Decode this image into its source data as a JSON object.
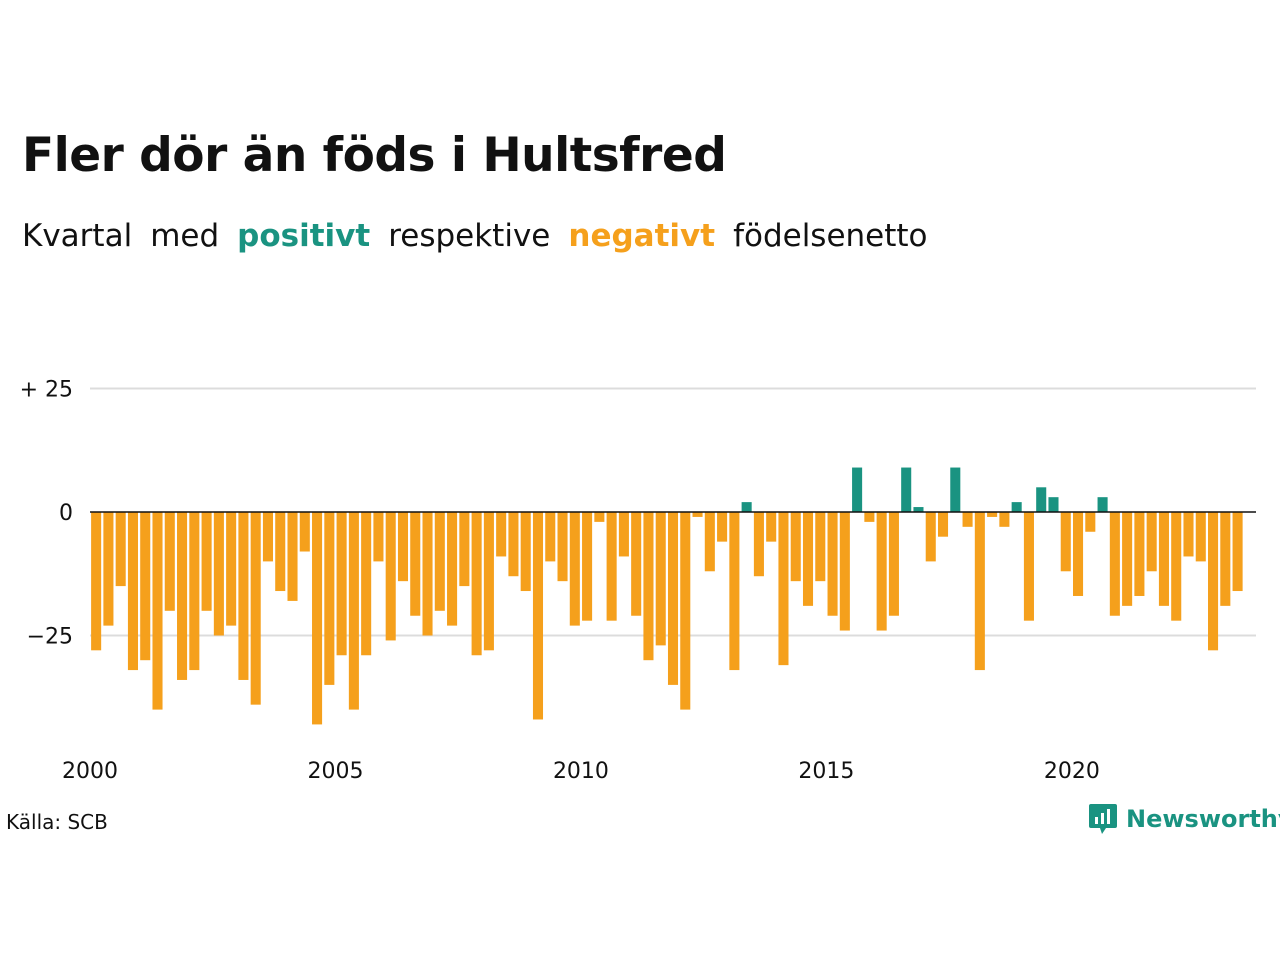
{
  "title": "Fler dör än föds i Hultsfred",
  "subtitle": {
    "part1": "Kvartal",
    "part2": "med",
    "positive_word": "positivt",
    "part3": "respektive",
    "negative_word": "negativt",
    "part4": "födelsenetto"
  },
  "colors": {
    "positive": "#1a9381",
    "negative": "#f5a01c",
    "grid": "#dcdcdc",
    "text": "#111111"
  },
  "source": "Källa: SCB",
  "brand": {
    "name": "Newsworthy",
    "icon": "newsworthy-logo-icon"
  },
  "chart_data": {
    "type": "bar",
    "x_start": 2000,
    "x_step": 0.25,
    "xlim": [
      2000,
      2023.75
    ],
    "ylim": [
      -43,
      25
    ],
    "yticks": [
      25,
      0,
      -25
    ],
    "ytick_labels": [
      "+ 25",
      "0",
      "−25"
    ],
    "xticks": [
      2000,
      2005,
      2010,
      2015,
      2020
    ],
    "xtick_labels": [
      "2000",
      "2005",
      "2010",
      "2015",
      "2020"
    ],
    "grid": true,
    "values": [
      -28,
      -23,
      -15,
      -32,
      -30,
      -40,
      -20,
      -34,
      -32,
      -20,
      -25,
      -23,
      -34,
      -39,
      -10,
      -16,
      -18,
      -8,
      -43,
      -35,
      -29,
      -40,
      -29,
      -10,
      -26,
      -14,
      -21,
      -25,
      -20,
      -23,
      -15,
      -29,
      -28,
      -9,
      -13,
      -16,
      -42,
      -10,
      -14,
      -23,
      -22,
      -2,
      -22,
      -9,
      -21,
      -30,
      -27,
      -35,
      -40,
      -1,
      -12,
      -6,
      -32,
      2,
      -13,
      -6,
      -31,
      -14,
      -19,
      -14,
      -21,
      -24,
      9,
      -2,
      -24,
      -21,
      9,
      1,
      -10,
      -5,
      9,
      -3,
      -32,
      -1,
      -3,
      2,
      -22,
      5,
      3,
      -12,
      -17,
      -4,
      3,
      -21,
      -19,
      -17,
      -12,
      -19,
      -22,
      -9,
      -10,
      -28,
      -19,
      -16
    ]
  }
}
